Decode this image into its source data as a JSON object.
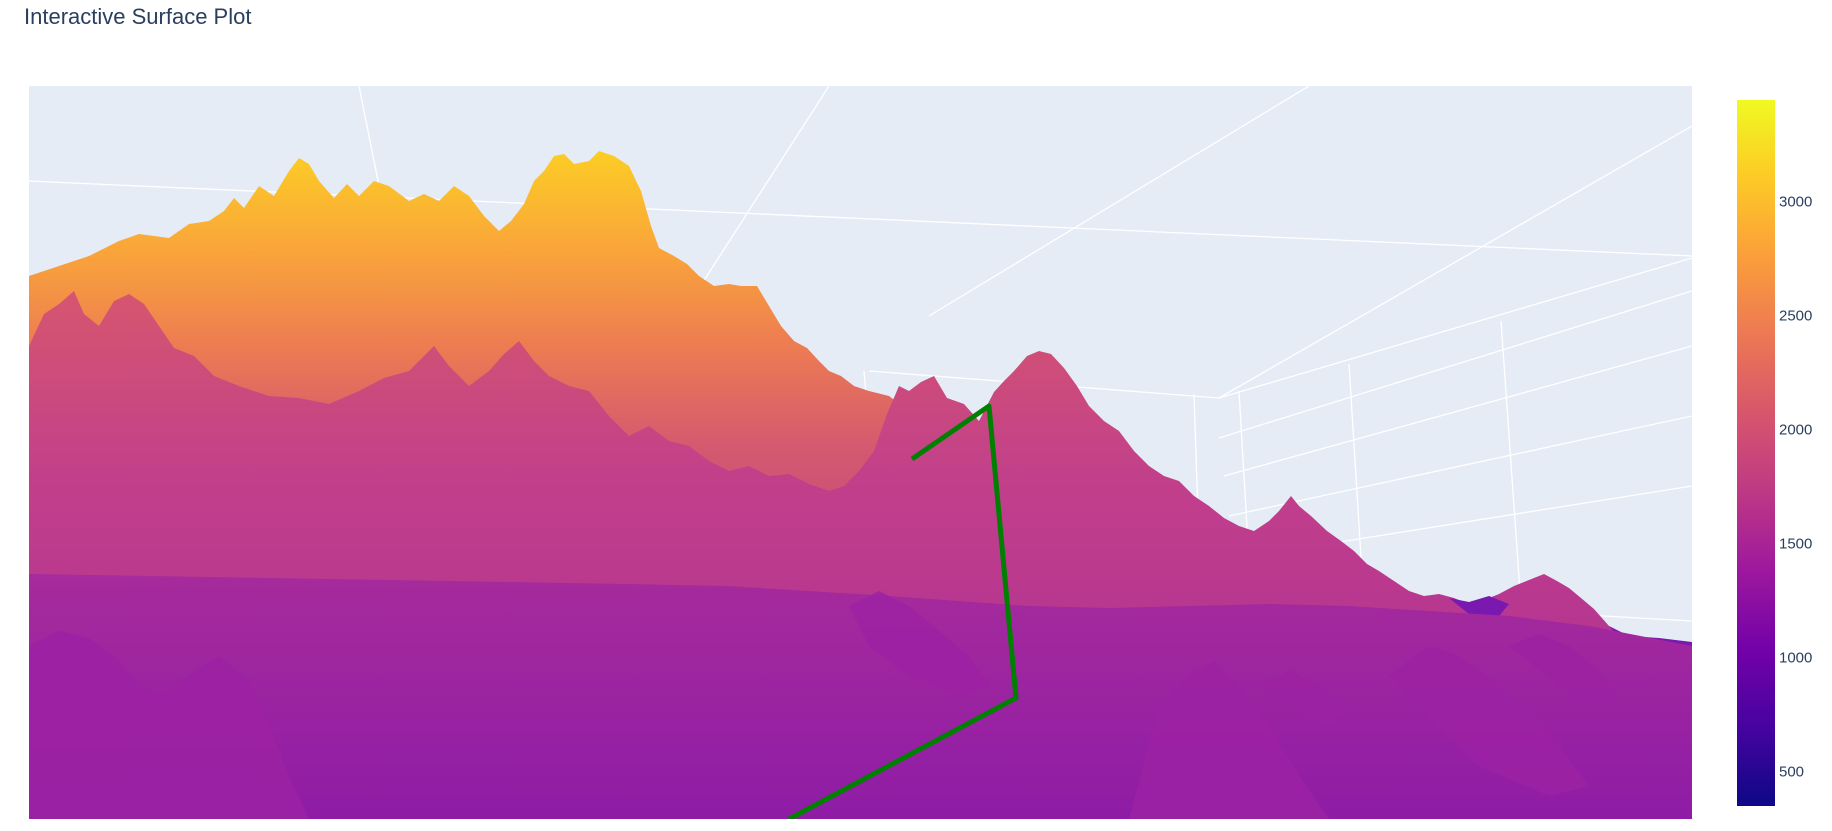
{
  "title": "Interactive Surface Plot",
  "chart_data": {
    "type": "surface",
    "title": "Interactive Surface Plot",
    "colorscale": "plasma",
    "colors": {
      "scene_background": "#e5ecf6",
      "gridline": "#ffffff",
      "trace_line": "#008000",
      "text": "#2a3f5f"
    },
    "colorbar": {
      "range": [
        350,
        3450
      ],
      "ticks": [
        {
          "value": 500,
          "label": "500"
        },
        {
          "value": 1000,
          "label": "1000"
        },
        {
          "value": 1500,
          "label": "1500"
        },
        {
          "value": 2000,
          "label": "2000"
        },
        {
          "value": 2500,
          "label": "2500"
        },
        {
          "value": 3000,
          "label": "3000"
        }
      ]
    },
    "surface": {
      "description_values": "Mountain elevation surface; back ridge peaks near 3400, foreground terrain around 1200-1600",
      "z_range": [
        350,
        3450
      ]
    },
    "line_trace": {
      "name": "",
      "color": "#008000"
    }
  }
}
